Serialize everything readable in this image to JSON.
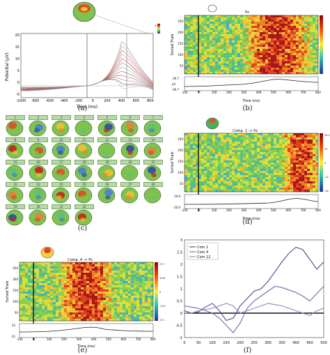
{
  "captions": {
    "a": "(a)",
    "b": "(b)",
    "c": "(c)",
    "d": "(d)",
    "e": "(e)",
    "f": "(f)"
  },
  "panel_a": {
    "ylabel": "Potential (μV)",
    "xlabel": "Time (ms)",
    "xticks": [
      "-1000",
      "-800",
      "-600",
      "-400",
      "-200",
      "0",
      "200",
      "400",
      "600",
      "800"
    ],
    "yticks": [
      "20",
      "15",
      "10",
      "5",
      "0",
      "-5"
    ],
    "cbar_labels": [
      "+",
      "-"
    ]
  },
  "panel_b": {
    "title": "Pz",
    "ylabel": "Sorted Trials",
    "xlabel": "Time (ms)",
    "yticks": [
      "250",
      "200",
      "150",
      "100",
      "50"
    ],
    "xticks": [
      "-100",
      "0",
      "100",
      "200",
      "300",
      "400",
      "500",
      "600",
      "700",
      "800"
    ],
    "erp_ticks": [
      "26.7",
      "-26.7"
    ],
    "erp_label": "μV"
  },
  "panel_c": {
    "labels": [
      "1",
      "2",
      "3",
      "4",
      "5",
      "6",
      "7",
      "8",
      "9",
      "10",
      "11",
      "12",
      "13",
      "14",
      "15",
      "16",
      "17",
      "18",
      "19",
      "20",
      "21",
      "22",
      "23",
      "24",
      "25",
      "26",
      "27",
      "28",
      "29",
      "30",
      "31",
      "32"
    ]
  },
  "panel_d": {
    "title": "Comp. 1 -> Pz",
    "ylabel": "Sorted Trials",
    "xlabel": "Time (ms)",
    "yticks": [
      "250",
      "200",
      "150",
      "100",
      "50"
    ],
    "xticks": [
      "-100",
      "0",
      "100",
      "200",
      "300",
      "400",
      "500",
      "600",
      "700",
      "800"
    ],
    "erp_ticks": [
      "10.6",
      "-10.6"
    ],
    "cbar_ticks": [
      "24.1",
      "12",
      "0",
      "-12",
      "-24"
    ]
  },
  "panel_e": {
    "title": "Comp. 4 -> Pz",
    "ylabel": "Sorted Trials",
    "xlabel": "Time (ms)",
    "yticks": [
      "250",
      "200",
      "150",
      "100",
      "50"
    ],
    "xticks": [
      "-100",
      "0",
      "100",
      "200",
      "300",
      "400",
      "500",
      "600",
      "700",
      "800"
    ],
    "erp_ticks": [
      "12",
      "-11"
    ],
    "cbar_ticks": [
      "27.7",
      "13.8",
      "0",
      "-13.8",
      "-27.7"
    ]
  },
  "chart_data": {
    "type": "line",
    "title": "",
    "xlabel": "",
    "ylabel": "",
    "x": [
      0,
      25,
      50,
      75,
      100,
      125,
      150,
      175,
      200,
      225,
      250,
      275,
      300,
      325,
      350,
      375,
      400,
      425,
      450,
      475,
      500
    ],
    "xlim": [
      0,
      500
    ],
    "ylim": [
      -1,
      3
    ],
    "xticks": [
      "0",
      "50",
      "100",
      "150",
      "200",
      "250",
      "300",
      "350",
      "400",
      "450",
      "500"
    ],
    "yticks": [
      "3",
      "2.5",
      "2",
      "1.5",
      "1",
      "0.5",
      "0",
      "-0.5",
      "-1"
    ],
    "legend_position": "top-left",
    "series": [
      {
        "name": "Com 1",
        "color": "#4a4a8a",
        "values": [
          0.1,
          0.0,
          0.05,
          0.25,
          0.4,
          0.1,
          -0.3,
          -0.2,
          0.3,
          0.6,
          0.9,
          1.0,
          1.3,
          1.7,
          2.1,
          2.45,
          2.7,
          2.6,
          2.2,
          1.8,
          2.1
        ]
      },
      {
        "name": "Com 4",
        "color": "#6a6aa8",
        "values": [
          0.3,
          0.25,
          0.2,
          0.1,
          0.0,
          -0.2,
          -0.5,
          -0.8,
          -0.4,
          0.2,
          0.5,
          0.7,
          0.9,
          1.1,
          1.05,
          0.95,
          0.85,
          0.7,
          0.5,
          0.8,
          1.1
        ]
      },
      {
        "name": "Com 12",
        "color": "#8888c0",
        "values": [
          0.0,
          0.0,
          0.1,
          0.15,
          0.2,
          0.3,
          0.4,
          0.3,
          0.0,
          0.1,
          0.2,
          0.3,
          0.4,
          0.35,
          0.3,
          0.2,
          0.1,
          0.0,
          -0.1,
          0.1,
          0.2
        ]
      }
    ]
  }
}
